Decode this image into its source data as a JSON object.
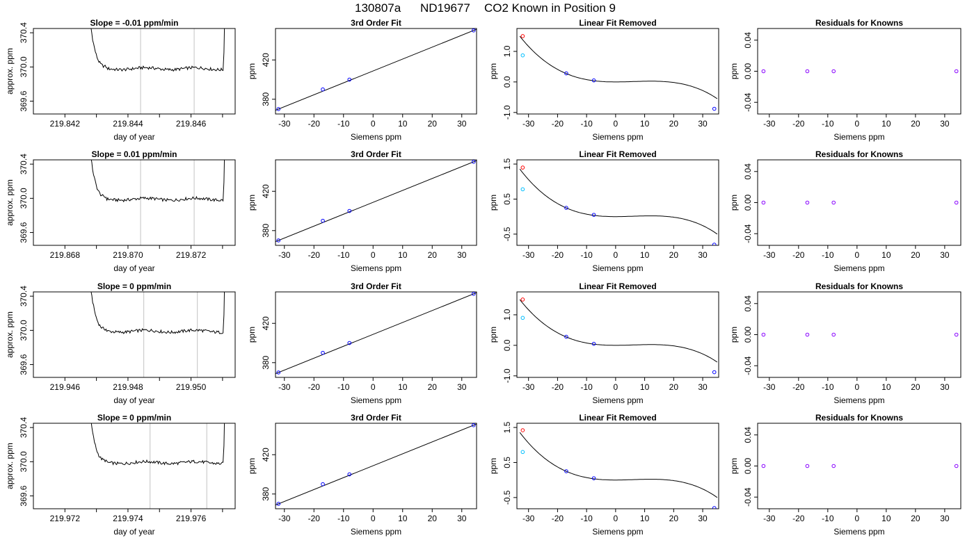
{
  "figure": {
    "run_id": "130807a",
    "tank_id": "ND19677",
    "description": "CO2 Known in Position  9"
  },
  "colors": {
    "line": "#000000",
    "grid_marker": "#cccccc",
    "point_blue": "#0000ff",
    "point_cyan": "#00bfff",
    "point_violet": "#8800ff",
    "point_red": "#ff0000"
  },
  "chart_data": [
    {
      "row": 1,
      "type": "line",
      "title": "Slope =  -0.01  ppm/min",
      "xlabel": "day of year",
      "ylabel": "approx. ppm",
      "xlim": [
        219.841,
        219.8474
      ],
      "ylim": [
        369.45,
        370.45
      ],
      "xticks": [
        "219.842",
        "219.844",
        "219.846"
      ],
      "xtick_values": [
        219.842,
        219.844,
        219.846
      ],
      "yticks": [
        "369.6",
        "370.0",
        "370.4"
      ],
      "ytick_values": [
        369.6,
        370.0,
        370.4
      ],
      "series": [
        {
          "x_range": [
            219.8426,
            219.8471
          ],
          "baseline": 369.98,
          "vlines": [
            219.8444,
            219.8461
          ]
        }
      ]
    },
    {
      "row": 1,
      "type": "scatter",
      "title": "3rd Order Fit",
      "xlabel": "Siemens ppm",
      "ylabel": "ppm",
      "xlim": [
        -33,
        35
      ],
      "ylim": [
        365,
        452
      ],
      "xticks": [
        "-30",
        "-20",
        "-10",
        "0",
        "10",
        "20",
        "30"
      ],
      "xtick_values": [
        -30,
        -20,
        -10,
        0,
        10,
        20,
        30
      ],
      "yticks": [
        "380",
        "420"
      ],
      "ytick_values": [
        380,
        420
      ],
      "points": [
        {
          "x": -32,
          "y": 370
        },
        {
          "x": -17,
          "y": 390
        },
        {
          "x": -8,
          "y": 400
        },
        {
          "x": 34,
          "y": 450
        }
      ],
      "fit": "linear"
    },
    {
      "row": 1,
      "type": "scatter",
      "title": "Linear Fit Removed",
      "xlabel": "Siemens ppm",
      "ylabel": "ppm",
      "xlim": [
        -34,
        35.5
      ],
      "ylim": [
        -1.05,
        1.75
      ],
      "xticks": [
        "-30",
        "-20",
        "-10",
        "0",
        "10",
        "20",
        "30"
      ],
      "xtick_values": [
        -30,
        -20,
        -10,
        0,
        10,
        20,
        30
      ],
      "yticks": [
        "-1.0",
        "0.0",
        "1.0"
      ],
      "ytick_values": [
        -1.0,
        0.0,
        1.0
      ],
      "curve_amplitude": 0.86,
      "points": [
        {
          "x": -32,
          "y": 1.5,
          "color": "point_red"
        },
        {
          "x": -32,
          "y": 0.87,
          "color": "point_cyan"
        },
        {
          "x": -17,
          "y": 0.28,
          "color": "point_blue"
        },
        {
          "x": -7.5,
          "y": 0.05,
          "color": "point_blue"
        },
        {
          "x": 34,
          "y": -0.88,
          "color": "point_blue"
        }
      ]
    },
    {
      "row": 1,
      "type": "scatter",
      "title": "Residuals for Knowns",
      "xlabel": "Siemens ppm",
      "ylabel": "ppm",
      "xlim": [
        -34,
        35.5
      ],
      "ylim": [
        -0.055,
        0.055
      ],
      "xticks": [
        "-30",
        "-20",
        "-10",
        "0",
        "10",
        "20",
        "30"
      ],
      "xtick_values": [
        -30,
        -20,
        -10,
        0,
        10,
        20,
        30
      ],
      "yticks": [
        "-0.04",
        "0.00",
        "0.04"
      ],
      "ytick_values": [
        -0.04,
        0.0,
        0.04
      ],
      "points": [
        {
          "x": -32,
          "y": 0
        },
        {
          "x": -17,
          "y": 0
        },
        {
          "x": -8,
          "y": 0
        },
        {
          "x": 34,
          "y": 0
        }
      ]
    },
    {
      "row": 2,
      "type": "line",
      "title": "Slope =  0.01  ppm/min",
      "xlabel": "day of year",
      "ylabel": "approx. ppm",
      "xlim": [
        219.867,
        219.8734
      ],
      "ylim": [
        369.45,
        370.45
      ],
      "xticks": [
        "219.868",
        "219.870",
        "219.872"
      ],
      "xtick_values": [
        219.868,
        219.87,
        219.872
      ],
      "yticks": [
        "369.6",
        "370.0",
        "370.4"
      ],
      "ytick_values": [
        369.6,
        370.0,
        370.4
      ],
      "series": [
        {
          "x_range": [
            219.8686,
            219.8731
          ],
          "baseline": 369.99,
          "vlines": [
            219.8704,
            219.8721
          ]
        }
      ]
    },
    {
      "row": 2,
      "type": "scatter",
      "title": "3rd Order Fit",
      "xlabel": "Siemens ppm",
      "ylabel": "ppm",
      "xlim": [
        -33,
        35
      ],
      "ylim": [
        365,
        452
      ],
      "xticks": [
        "-30",
        "-20",
        "-10",
        "0",
        "10",
        "20",
        "30"
      ],
      "xtick_values": [
        -30,
        -20,
        -10,
        0,
        10,
        20,
        30
      ],
      "yticks": [
        "380",
        "420"
      ],
      "ytick_values": [
        380,
        420
      ],
      "points": [
        {
          "x": -32,
          "y": 370
        },
        {
          "x": -17,
          "y": 390
        },
        {
          "x": -8,
          "y": 400
        },
        {
          "x": 34,
          "y": 450
        }
      ],
      "fit": "linear"
    },
    {
      "row": 2,
      "type": "scatter",
      "title": "Linear Fit Removed",
      "xlabel": "Siemens ppm",
      "ylabel": "ppm",
      "xlim": [
        -34,
        35.5
      ],
      "ylim": [
        -0.82,
        1.62
      ],
      "xticks": [
        "-30",
        "-20",
        "-10",
        "0",
        "10",
        "20",
        "30"
      ],
      "xtick_values": [
        -30,
        -20,
        -10,
        0,
        10,
        20,
        30
      ],
      "yticks": [
        "-0.5",
        "0.5",
        "1.5"
      ],
      "ytick_values": [
        -0.5,
        0.5,
        1.5
      ],
      "curve_amplitude": 0.78,
      "points": [
        {
          "x": -32,
          "y": 1.4,
          "color": "point_red"
        },
        {
          "x": -32,
          "y": 0.78,
          "color": "point_cyan"
        },
        {
          "x": -17,
          "y": 0.25,
          "color": "point_blue"
        },
        {
          "x": -7.5,
          "y": 0.05,
          "color": "point_blue"
        },
        {
          "x": 34,
          "y": -0.8,
          "color": "point_blue"
        }
      ]
    },
    {
      "row": 2,
      "type": "scatter",
      "title": "Residuals for Knowns",
      "xlabel": "Siemens ppm",
      "ylabel": "ppm",
      "xlim": [
        -34,
        35.5
      ],
      "ylim": [
        -0.055,
        0.055
      ],
      "xticks": [
        "-30",
        "-20",
        "-10",
        "0",
        "10",
        "20",
        "30"
      ],
      "xtick_values": [
        -30,
        -20,
        -10,
        0,
        10,
        20,
        30
      ],
      "yticks": [
        "-0.04",
        "0.00",
        "0.04"
      ],
      "ytick_values": [
        -0.04,
        0.0,
        0.04
      ],
      "points": [
        {
          "x": -32,
          "y": 0
        },
        {
          "x": -17,
          "y": 0
        },
        {
          "x": -8,
          "y": 0
        },
        {
          "x": 34,
          "y": 0
        }
      ]
    },
    {
      "row": 3,
      "type": "line",
      "title": "Slope =  0  ppm/min",
      "xlabel": "day of year",
      "ylabel": "approx. ppm",
      "xlim": [
        219.945,
        219.9514
      ],
      "ylim": [
        369.45,
        370.45
      ],
      "xticks": [
        "219.946",
        "219.948",
        "219.950"
      ],
      "xtick_values": [
        219.946,
        219.948,
        219.95
      ],
      "yticks": [
        "369.6",
        "370.0",
        "370.4"
      ],
      "ytick_values": [
        369.6,
        370.0,
        370.4
      ],
      "series": [
        {
          "x_range": [
            219.9466,
            219.9511
          ],
          "baseline": 369.99,
          "vlines": [
            219.9485,
            219.9502
          ]
        }
      ]
    },
    {
      "row": 3,
      "type": "scatter",
      "title": "3rd Order Fit",
      "xlabel": "Siemens ppm",
      "ylabel": "ppm",
      "xlim": [
        -33,
        35
      ],
      "ylim": [
        365,
        452
      ],
      "xticks": [
        "-30",
        "-20",
        "-10",
        "0",
        "10",
        "20",
        "30"
      ],
      "xtick_values": [
        -30,
        -20,
        -10,
        0,
        10,
        20,
        30
      ],
      "yticks": [
        "380",
        "420"
      ],
      "ytick_values": [
        380,
        420
      ],
      "points": [
        {
          "x": -32,
          "y": 370
        },
        {
          "x": -17,
          "y": 390
        },
        {
          "x": -8,
          "y": 400
        },
        {
          "x": 34,
          "y": 450
        }
      ],
      "fit": "linear"
    },
    {
      "row": 3,
      "type": "scatter",
      "title": "Linear Fit Removed",
      "xlabel": "Siemens ppm",
      "ylabel": "ppm",
      "xlim": [
        -34,
        35.5
      ],
      "ylim": [
        -1.05,
        1.75
      ],
      "xticks": [
        "-30",
        "-20",
        "-10",
        "0",
        "10",
        "20",
        "30"
      ],
      "xtick_values": [
        -30,
        -20,
        -10,
        0,
        10,
        20,
        30
      ],
      "yticks": [
        "-1.0",
        "0.0",
        "1.0"
      ],
      "ytick_values": [
        -1.0,
        0.0,
        1.0
      ],
      "curve_amplitude": 0.86,
      "points": [
        {
          "x": -32,
          "y": 1.5,
          "color": "point_red"
        },
        {
          "x": -32,
          "y": 0.9,
          "color": "point_cyan"
        },
        {
          "x": -17,
          "y": 0.28,
          "color": "point_blue"
        },
        {
          "x": -7.5,
          "y": 0.05,
          "color": "point_blue"
        },
        {
          "x": 34,
          "y": -0.88,
          "color": "point_blue"
        }
      ]
    },
    {
      "row": 3,
      "type": "scatter",
      "title": "Residuals for Knowns",
      "xlabel": "Siemens ppm",
      "ylabel": "ppm",
      "xlim": [
        -34,
        35.5
      ],
      "ylim": [
        -0.055,
        0.055
      ],
      "xticks": [
        "-30",
        "-20",
        "-10",
        "0",
        "10",
        "20",
        "30"
      ],
      "xtick_values": [
        -30,
        -20,
        -10,
        0,
        10,
        20,
        30
      ],
      "yticks": [
        "-0.04",
        "0.00",
        "0.04"
      ],
      "ytick_values": [
        -0.04,
        0.0,
        0.04
      ],
      "points": [
        {
          "x": -32,
          "y": 0
        },
        {
          "x": -17,
          "y": 0
        },
        {
          "x": -8,
          "y": 0
        },
        {
          "x": 34,
          "y": 0
        }
      ]
    },
    {
      "row": 4,
      "type": "line",
      "title": "Slope =  0  ppm/min",
      "xlabel": "day of year",
      "ylabel": "approx. ppm",
      "xlim": [
        219.971,
        219.9774
      ],
      "ylim": [
        369.45,
        370.45
      ],
      "xticks": [
        "219.972",
        "219.974",
        "219.976"
      ],
      "xtick_values": [
        219.972,
        219.974,
        219.976
      ],
      "yticks": [
        "369.6",
        "370.0",
        "370.4"
      ],
      "ytick_values": [
        369.6,
        370.0,
        370.4
      ],
      "series": [
        {
          "x_range": [
            219.9726,
            219.9771
          ],
          "baseline": 369.99,
          "vlines": [
            219.9747,
            219.9765
          ]
        }
      ]
    },
    {
      "row": 4,
      "type": "scatter",
      "title": "3rd Order Fit",
      "xlabel": "Siemens ppm",
      "ylabel": "ppm",
      "xlim": [
        -33,
        35
      ],
      "ylim": [
        365,
        452
      ],
      "xticks": [
        "-30",
        "-20",
        "-10",
        "0",
        "10",
        "20",
        "30"
      ],
      "xtick_values": [
        -30,
        -20,
        -10,
        0,
        10,
        20,
        30
      ],
      "yticks": [
        "380",
        "420"
      ],
      "ytick_values": [
        380,
        420
      ],
      "points": [
        {
          "x": -32,
          "y": 370
        },
        {
          "x": -17,
          "y": 390
        },
        {
          "x": -8,
          "y": 400
        },
        {
          "x": 34,
          "y": 450
        }
      ],
      "fit": "linear"
    },
    {
      "row": 4,
      "type": "scatter",
      "title": "Linear Fit Removed",
      "xlabel": "Siemens ppm",
      "ylabel": "ppm",
      "xlim": [
        -34,
        35.5
      ],
      "ylim": [
        -0.82,
        1.62
      ],
      "xticks": [
        "-30",
        "-20",
        "-10",
        "0",
        "10",
        "20",
        "30"
      ],
      "xtick_values": [
        -30,
        -20,
        -10,
        0,
        10,
        20,
        30
      ],
      "yticks": [
        "-0.5",
        "0.5",
        "1.5"
      ],
      "ytick_values": [
        -0.5,
        0.5,
        1.5
      ],
      "curve_amplitude": 0.78,
      "points": [
        {
          "x": -32,
          "y": 1.42,
          "color": "point_red"
        },
        {
          "x": -32,
          "y": 0.8,
          "color": "point_cyan"
        },
        {
          "x": -17,
          "y": 0.25,
          "color": "point_blue"
        },
        {
          "x": -7.5,
          "y": 0.05,
          "color": "point_blue"
        },
        {
          "x": 34,
          "y": -0.8,
          "color": "point_blue"
        }
      ]
    },
    {
      "row": 4,
      "type": "scatter",
      "title": "Residuals for Knowns",
      "xlabel": "Siemens ppm",
      "ylabel": "ppm",
      "xlim": [
        -34,
        35.5
      ],
      "ylim": [
        -0.055,
        0.055
      ],
      "xticks": [
        "-30",
        "-20",
        "-10",
        "0",
        "10",
        "20",
        "30"
      ],
      "xtick_values": [
        -30,
        -20,
        -10,
        0,
        10,
        20,
        30
      ],
      "yticks": [
        "-0.04",
        "0.00",
        "0.04"
      ],
      "ytick_values": [
        -0.04,
        0.0,
        0.04
      ],
      "points": [
        {
          "x": -32,
          "y": 0
        },
        {
          "x": -17,
          "y": 0
        },
        {
          "x": -8,
          "y": 0
        },
        {
          "x": 34,
          "y": 0
        }
      ]
    }
  ]
}
